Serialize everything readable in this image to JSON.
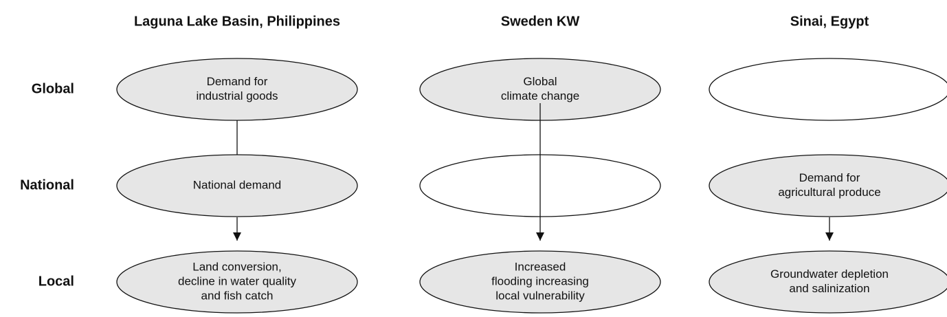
{
  "rows": [
    "Global",
    "National",
    "Local"
  ],
  "columns": [
    {
      "title": "Laguna Lake Basin, Philippines",
      "nodes": {
        "Global": [
          "Demand for",
          "industrial goods"
        ],
        "National": [
          "National demand"
        ],
        "Local": [
          "Land conversion,",
          "decline in water quality",
          "and fish catch"
        ]
      }
    },
    {
      "title": "Sweden KW",
      "nodes": {
        "Global": [
          "Global",
          "climate change"
        ],
        "Local": [
          "Increased",
          "flooding increasing",
          "local vulnerability"
        ]
      }
    },
    {
      "title": "Sinai, Egypt",
      "nodes": {
        "National": [
          "Demand for",
          "agricultural produce"
        ],
        "Local": [
          "Groundwater depletion",
          "and salinization"
        ]
      }
    }
  ]
}
